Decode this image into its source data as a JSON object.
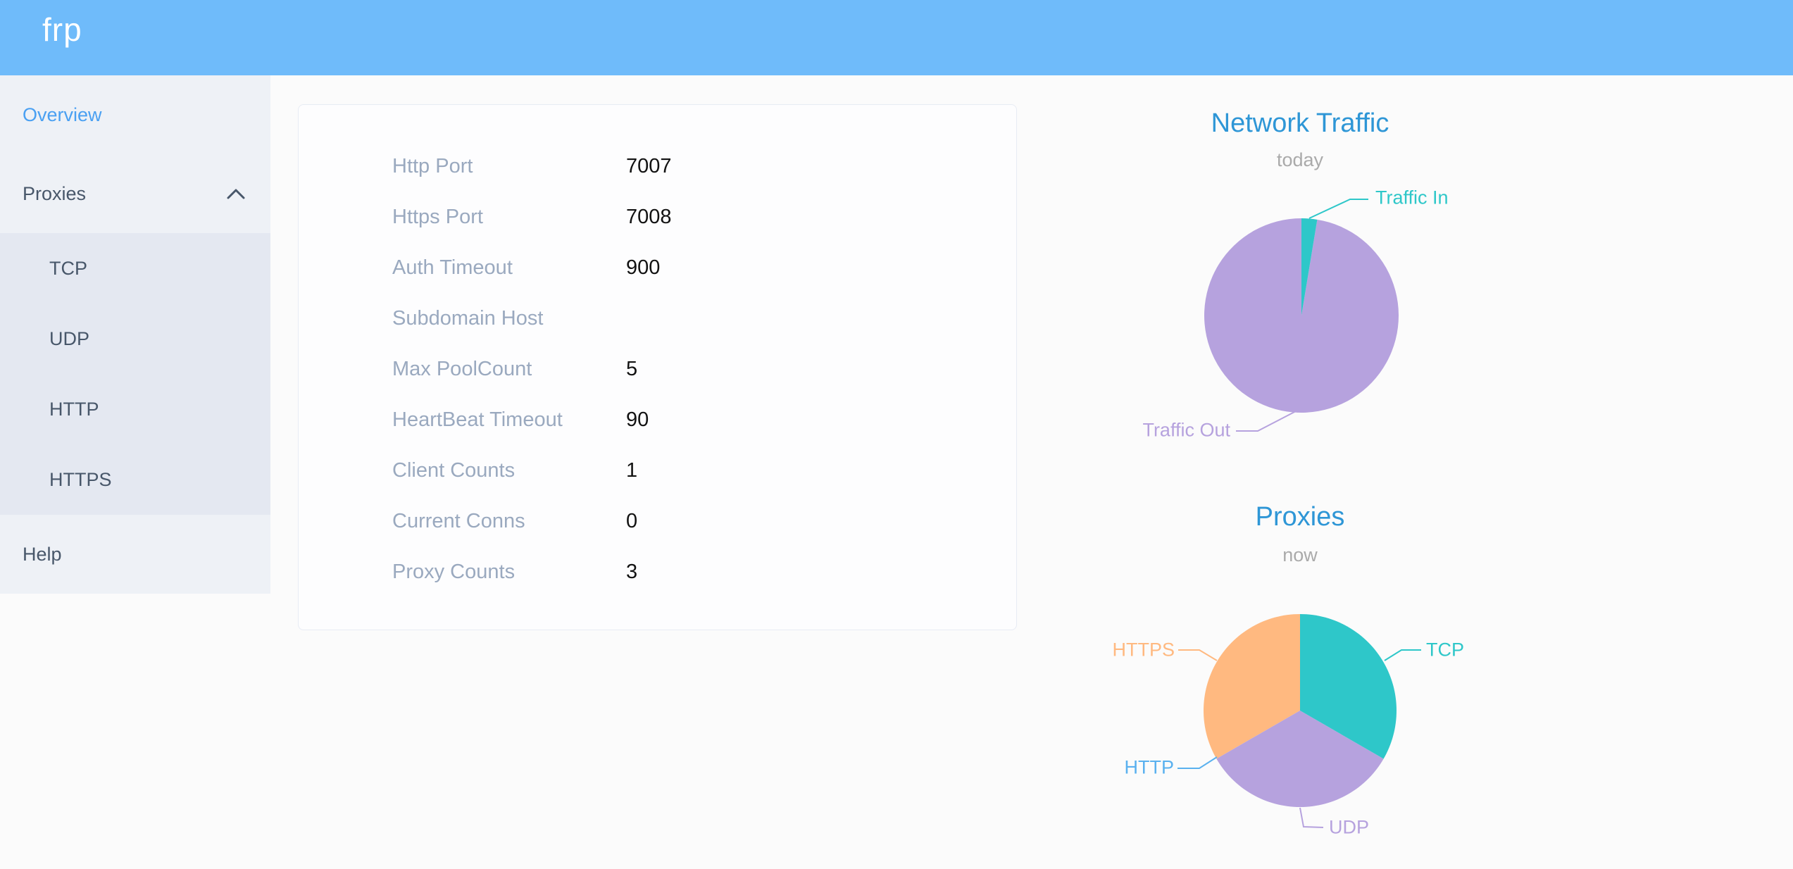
{
  "header": {
    "logo": "frp"
  },
  "sidebar": {
    "overview": "Overview",
    "proxies": "Proxies",
    "proxy_types": [
      "TCP",
      "UDP",
      "HTTP",
      "HTTPS"
    ],
    "help": "Help"
  },
  "server_info": {
    "rows": [
      {
        "label": "Http Port",
        "value": "7007"
      },
      {
        "label": "Https Port",
        "value": "7008"
      },
      {
        "label": "Auth Timeout",
        "value": "900"
      },
      {
        "label": "Subdomain Host",
        "value": ""
      },
      {
        "label": "Max PoolCount",
        "value": "5"
      },
      {
        "label": "HeartBeat Timeout",
        "value": "90"
      },
      {
        "label": "Client Counts",
        "value": "1"
      },
      {
        "label": "Current Conns",
        "value": "0"
      },
      {
        "label": "Proxy Counts",
        "value": "3"
      }
    ]
  },
  "chart_data": [
    {
      "type": "pie",
      "title": "Network Traffic",
      "subtitle": "today",
      "estimated": true,
      "unit": "percent",
      "series": [
        {
          "name": "Traffic In",
          "value": 2.6,
          "color": "#2ec7c9"
        },
        {
          "name": "Traffic Out",
          "value": 97.4,
          "color": "#b6a2de"
        }
      ]
    },
    {
      "type": "pie",
      "title": "Proxies",
      "subtitle": "now",
      "unit": "count",
      "series": [
        {
          "name": "TCP",
          "value": 1,
          "color": "#2ec7c9"
        },
        {
          "name": "UDP",
          "value": 1,
          "color": "#b6a2de"
        },
        {
          "name": "HTTP",
          "value": 0,
          "color": "#5ab1ef"
        },
        {
          "name": "HTTPS",
          "value": 1,
          "color": "#ffb980"
        }
      ]
    }
  ]
}
